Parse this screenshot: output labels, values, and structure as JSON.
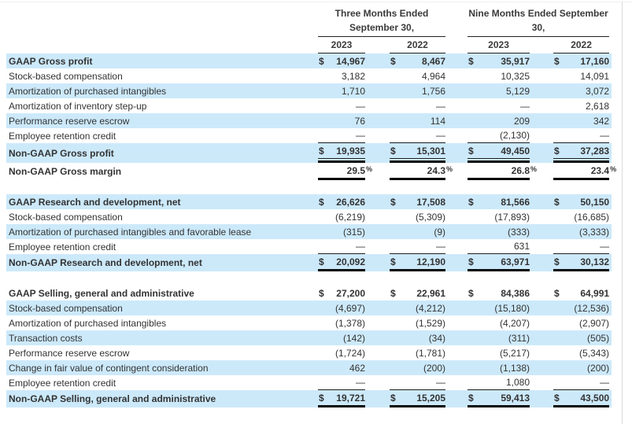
{
  "document": {
    "title_hint": "GAAP to Non-GAAP reconciliation table",
    "period_headers": [
      {
        "line1": "Three Months Ended",
        "line2": "September 30,"
      },
      {
        "line1": "Nine Months Ended September",
        "line2": "30,"
      }
    ],
    "year_headers": [
      "2023",
      "2022",
      "2023",
      "2022"
    ],
    "currency_symbol": "$",
    "rows": [
      {
        "label": "GAAP Gross profit",
        "cur": "$",
        "values": [
          "14,967",
          "8,467",
          "35,917",
          "17,160"
        ],
        "highlight": true,
        "emphasis": true
      },
      {
        "label": "Stock-based compensation",
        "values": [
          "3,182",
          "4,964",
          "10,325",
          "14,091"
        ]
      },
      {
        "label": "Amortization of purchased intangibles",
        "values": [
          "1,710",
          "1,756",
          "5,129",
          "3,072"
        ],
        "highlight": true
      },
      {
        "label": "Amortization of inventory step-up",
        "values": [
          "—",
          "—",
          "—",
          "2,618"
        ]
      },
      {
        "label": "Performance reserve escrow",
        "values": [
          "76",
          "114",
          "209",
          "342"
        ],
        "highlight": true
      },
      {
        "label": "Employee retention credit",
        "values": [
          "—",
          "—",
          "(2,130)",
          "—"
        ],
        "rule": "thin"
      },
      {
        "label": "Non-GAAP Gross profit",
        "cur": "$",
        "values": [
          "19,935",
          "15,301",
          "49,450",
          "37,283"
        ],
        "highlight": true,
        "emphasis": true,
        "rule": "thick",
        "inner_rule": true
      },
      {
        "label": "Non-GAAP Gross margin",
        "values": [
          "29.5",
          "24.3",
          "26.8",
          "23.4"
        ],
        "pct": "%",
        "emphasis": true,
        "rule": "thick"
      },
      {
        "label": "GAAP Research and development, net",
        "cur": "$",
        "values": [
          "26,626",
          "17,508",
          "81,566",
          "50,150"
        ],
        "highlight": true,
        "emphasis": true,
        "section_break_before": true
      },
      {
        "label": "Stock-based compensation",
        "values": [
          "(6,219)",
          "(5,309)",
          "(17,893)",
          "(16,685)"
        ]
      },
      {
        "label": "Amortization of purchased intangibles and favorable lease",
        "values": [
          "(315)",
          "(9)",
          "(333)",
          "(3,333)"
        ],
        "highlight": true
      },
      {
        "label": "Employee retention credit",
        "values": [
          "—",
          "—",
          "631",
          "—"
        ],
        "rule": "thin"
      },
      {
        "label": "Non-GAAP Research and development, net",
        "cur": "$",
        "values": [
          "20,092",
          "12,190",
          "63,971",
          "30,132"
        ],
        "highlight": true,
        "emphasis": true,
        "rule": "thick"
      },
      {
        "label": "GAAP Selling, general and administrative",
        "cur": "$",
        "values": [
          "27,200",
          "22,961",
          "84,386",
          "64,991"
        ],
        "emphasis": true,
        "section_break_before": true
      },
      {
        "label": "Stock-based compensation",
        "values": [
          "(4,697)",
          "(4,212)",
          "(15,180)",
          "(12,536)"
        ],
        "highlight": true
      },
      {
        "label": "Amortization of purchased intangibles",
        "values": [
          "(1,378)",
          "(1,529)",
          "(4,207)",
          "(2,907)"
        ]
      },
      {
        "label": "Transaction costs",
        "values": [
          "(142)",
          "(34)",
          "(311)",
          "(505)"
        ],
        "highlight": true
      },
      {
        "label": "Performance reserve escrow",
        "values": [
          "(1,724)",
          "(1,781)",
          "(5,217)",
          "(5,343)"
        ]
      },
      {
        "label": "Change in fair value of contingent consideration",
        "values": [
          "462",
          "(200)",
          "(1,138)",
          "(200)"
        ],
        "highlight": true
      },
      {
        "label": "Employee retention credit",
        "values": [
          "—",
          "—",
          "1,080",
          "—"
        ],
        "rule": "thin"
      },
      {
        "label": "Non-GAAP Selling, general and administrative",
        "cur": "$",
        "values": [
          "19,721",
          "15,205",
          "59,413",
          "43,500"
        ],
        "highlight": true,
        "emphasis": true,
        "rule": "thick"
      }
    ]
  },
  "colors": {
    "row_highlight": "#cce9fa",
    "rule_thin": "#1f1f1f",
    "rule_thick": "#050505",
    "text": "#333333",
    "page_border": "#dcdcdc"
  }
}
